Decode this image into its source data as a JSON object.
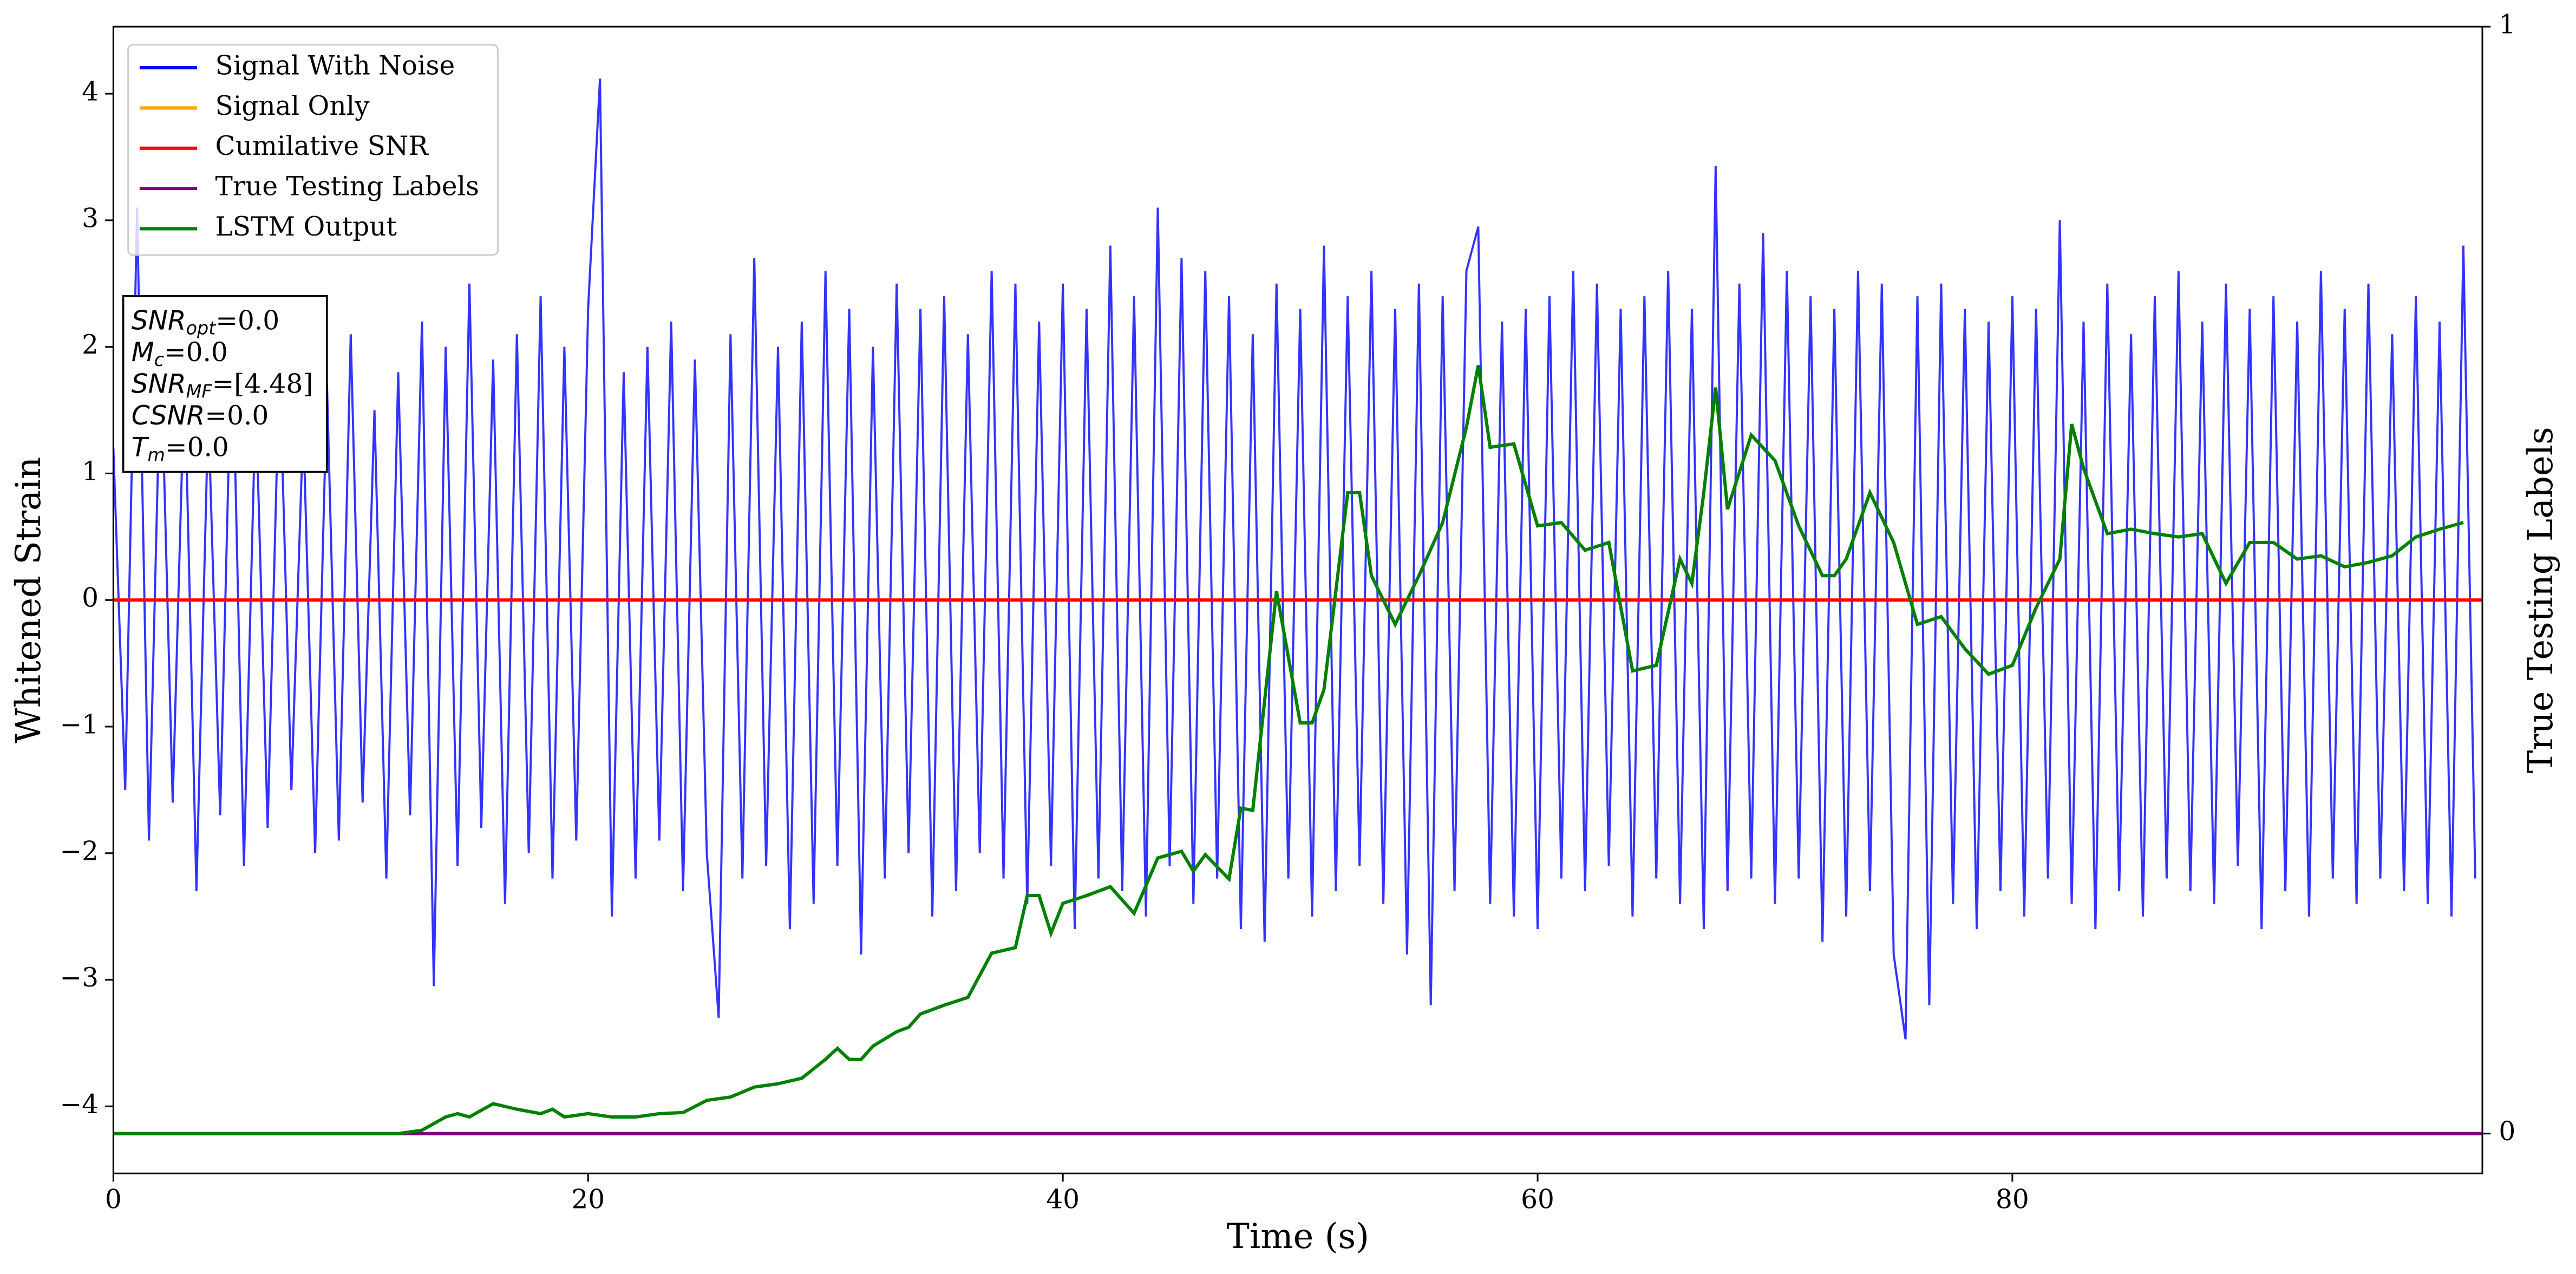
{
  "chart_data": {
    "type": "line",
    "xlabel": "Time (s)",
    "ylabel": "Whitened Strain",
    "y2label": "True Testing Labels",
    "xlim": [
      0,
      99.8
    ],
    "xticks": [
      0,
      20,
      40,
      60,
      80
    ],
    "ylim": [
      -4.53,
      4.53
    ],
    "yticks": [
      -4,
      -3,
      -2,
      -1,
      0,
      1,
      2,
      3,
      4
    ],
    "y2lim": [
      -0.036,
      1
    ],
    "y2ticks": [
      0,
      1
    ],
    "legend": "upper left",
    "series": [
      {
        "name": "Signal With Noise",
        "color": "#0000ff",
        "x": [
          0,
          0.5,
          1,
          1.5,
          2,
          2.5,
          3,
          3.5,
          4,
          4.5,
          5,
          5.5,
          6,
          6.5,
          7,
          7.5,
          8,
          8.5,
          9,
          9.5,
          10,
          10.5,
          11,
          11.5,
          12,
          12.5,
          13,
          13.5,
          14,
          14.5,
          15,
          15.5,
          16,
          16.5,
          17,
          17.5,
          18,
          18.5,
          19,
          19.5,
          20,
          20.5,
          21,
          21.5,
          22,
          22.5,
          23,
          23.5,
          24,
          24.5,
          25,
          25.5,
          26,
          26.5,
          27,
          27.5,
          28,
          28.5,
          29,
          29.5,
          30,
          30.5,
          31,
          31.5,
          32,
          32.5,
          33,
          33.5,
          34,
          34.5,
          35,
          35.5,
          36,
          36.5,
          37,
          37.5,
          38,
          38.5,
          39,
          39.5,
          40,
          40.5,
          41,
          41.5,
          42,
          42.5,
          43,
          43.5,
          44,
          44.5,
          45,
          45.5,
          46,
          46.5,
          47,
          47.5,
          48,
          48.5,
          49,
          49.5,
          50,
          50.5,
          51,
          51.5,
          52,
          52.5,
          53,
          53.5,
          54,
          54.5,
          55,
          55.5,
          56,
          56.5,
          57,
          57.5,
          58,
          58.5,
          59,
          59.5,
          60,
          60.5,
          61,
          61.5,
          62,
          62.5,
          63,
          63.5,
          64,
          64.5,
          65,
          65.5,
          66,
          66.5,
          67,
          67.5,
          68,
          68.5,
          69,
          69.5,
          70,
          70.5,
          71,
          71.5,
          72,
          72.5,
          73,
          73.5,
          74,
          74.5,
          75,
          75.5,
          76,
          76.5,
          77,
          77.5,
          78,
          78.5,
          79,
          79.5,
          80,
          80.5,
          81,
          81.5,
          82,
          82.5,
          83,
          83.5,
          84,
          84.5,
          85,
          85.5,
          86,
          86.5,
          87,
          87.5,
          88,
          88.5,
          89,
          89.5,
          90,
          90.5,
          91,
          91.5,
          92,
          92.5,
          93,
          93.5,
          94,
          94.5,
          95,
          95.5,
          96,
          96.5,
          97,
          97.5,
          98,
          98.5,
          99,
          99.5
        ],
        "values": [
          1.2,
          -1.5,
          3.1,
          -1.9,
          2.0,
          -1.6,
          1.8,
          -2.3,
          1.5,
          -1.7,
          2.2,
          -2.1,
          1.6,
          -1.8,
          1.9,
          -1.5,
          1.4,
          -2.0,
          1.7,
          -1.9,
          2.1,
          -1.6,
          1.5,
          -2.2,
          1.8,
          -1.7,
          2.2,
          -3.05,
          2.0,
          -2.1,
          2.5,
          -1.8,
          1.9,
          -2.4,
          2.1,
          -2.0,
          2.4,
          -2.2,
          2.0,
          -1.9,
          2.3,
          4.12,
          -2.5,
          1.8,
          -2.2,
          2.0,
          -1.9,
          2.2,
          -2.3,
          1.9,
          -2.0,
          -3.3,
          2.1,
          -2.2,
          2.7,
          -2.1,
          2.0,
          -2.6,
          2.2,
          -2.4,
          2.6,
          -2.1,
          2.3,
          -2.8,
          2.0,
          -2.2,
          2.5,
          -2.0,
          2.3,
          -2.5,
          2.4,
          -2.3,
          2.1,
          -2.0,
          2.6,
          -2.2,
          2.5,
          -2.4,
          2.2,
          -2.1,
          2.5,
          -2.6,
          2.3,
          -2.2,
          2.8,
          -2.3,
          2.4,
          -2.5,
          3.1,
          -2.1,
          2.7,
          -2.4,
          2.6,
          -2.2,
          2.4,
          -2.6,
          2.1,
          -2.7,
          2.5,
          -2.2,
          2.3,
          -2.5,
          2.8,
          -2.3,
          2.4,
          -2.1,
          2.6,
          -2.4,
          2.3,
          -2.8,
          2.5,
          -3.2,
          2.4,
          -2.3,
          2.6,
          2.95,
          -2.4,
          2.2,
          -2.5,
          2.3,
          -2.6,
          2.4,
          -2.2,
          2.6,
          -2.3,
          2.5,
          -2.1,
          2.3,
          -2.5,
          2.4,
          -2.2,
          2.6,
          -2.4,
          2.3,
          -2.6,
          3.43,
          -2.3,
          2.5,
          -2.2,
          2.9,
          -2.4,
          2.6,
          -2.2,
          2.4,
          -2.7,
          2.3,
          -2.5,
          2.6,
          -2.3,
          2.5,
          -2.8,
          -3.47,
          2.4,
          -3.2,
          2.5,
          -2.4,
          2.3,
          -2.6,
          2.2,
          -2.3,
          2.4,
          -2.5,
          2.3,
          -2.2,
          3.0,
          -2.4,
          2.2,
          -2.6,
          2.5,
          -2.3,
          2.1,
          -2.5,
          2.4,
          -2.2,
          2.6,
          -2.3,
          2.2,
          -2.4,
          2.5,
          -2.1,
          2.3,
          -2.6,
          2.4,
          -2.3,
          2.2,
          -2.5,
          2.6,
          -2.2,
          2.3,
          -2.4,
          2.5,
          -2.2,
          2.1,
          -2.3,
          2.4,
          -2.4,
          2.2,
          -2.5,
          2.8,
          -2.2
        ]
      },
      {
        "name": "Signal Only",
        "color": "#ffa500",
        "x": [
          0,
          99.8
        ],
        "values": [
          0,
          0
        ]
      },
      {
        "name": "Cumilative SNR",
        "color": "#ff0000",
        "x": [
          0,
          99.8
        ],
        "values": [
          0,
          0
        ]
      },
      {
        "name": "True Testing Labels",
        "color": "#800080",
        "axis": "y2",
        "x": [
          0,
          99.8
        ],
        "values": [
          0,
          0
        ]
      },
      {
        "name": "LSTM Output",
        "color": "#008000",
        "axis": "y2",
        "x": [
          0,
          12,
          13,
          14,
          14.5,
          15,
          16,
          17,
          18,
          18.5,
          19,
          20,
          21,
          22,
          23,
          24,
          25,
          26,
          27,
          28,
          29,
          30,
          30.5,
          31,
          31.5,
          32,
          33,
          33.5,
          34,
          35,
          36,
          37,
          38,
          38.5,
          39,
          39.5,
          40,
          41,
          42,
          43,
          44,
          45,
          45.5,
          46,
          47,
          47.5,
          48,
          49,
          50,
          50.5,
          51,
          52,
          52.5,
          53,
          54,
          55,
          56,
          57,
          57.5,
          58,
          59,
          60,
          61,
          62,
          63,
          64,
          65,
          66,
          66.5,
          67,
          67.5,
          68,
          69,
          70,
          71,
          72,
          72.5,
          73,
          74,
          75,
          76,
          77,
          78,
          79,
          80,
          81,
          82,
          82.5,
          83,
          84,
          85,
          86,
          87,
          88,
          89,
          90,
          91,
          92,
          93,
          94,
          95,
          96,
          97,
          98,
          99
        ],
        "values": [
          0,
          0,
          0.003,
          0.015,
          0.018,
          0.015,
          0.027,
          0.022,
          0.018,
          0.022,
          0.015,
          0.018,
          0.015,
          0.015,
          0.018,
          0.019,
          0.03,
          0.033,
          0.042,
          0.045,
          0.05,
          0.067,
          0.077,
          0.067,
          0.067,
          0.079,
          0.092,
          0.096,
          0.108,
          0.116,
          0.123,
          0.163,
          0.168,
          0.215,
          0.215,
          0.181,
          0.208,
          0.215,
          0.223,
          0.199,
          0.249,
          0.255,
          0.237,
          0.252,
          0.23,
          0.294,
          0.292,
          0.49,
          0.371,
          0.371,
          0.401,
          0.579,
          0.579,
          0.504,
          0.46,
          0.504,
          0.552,
          0.638,
          0.694,
          0.62,
          0.623,
          0.549,
          0.552,
          0.527,
          0.534,
          0.418,
          0.423,
          0.519,
          0.497,
          0.579,
          0.674,
          0.564,
          0.631,
          0.608,
          0.549,
          0.504,
          0.504,
          0.519,
          0.579,
          0.534,
          0.46,
          0.467,
          0.438,
          0.415,
          0.423,
          0.475,
          0.519,
          0.641,
          0.601,
          0.542,
          0.546,
          0.542,
          0.539,
          0.542,
          0.497,
          0.534,
          0.534,
          0.519,
          0.522,
          0.512,
          0.516,
          0.522,
          0.539,
          0.546,
          0.552
        ]
      }
    ],
    "annotation": [
      {
        "base": "SNR",
        "sub": "opt",
        "text": "=0.0"
      },
      {
        "base": "M",
        "sub": "c",
        "text": "=0.0"
      },
      {
        "base": "SNR",
        "sub": "MF",
        "text": "=[4.48]"
      },
      {
        "base": "CSNR",
        "text": "=0.0"
      },
      {
        "base": "T",
        "sub": "m",
        "text": "=0.0"
      }
    ]
  }
}
